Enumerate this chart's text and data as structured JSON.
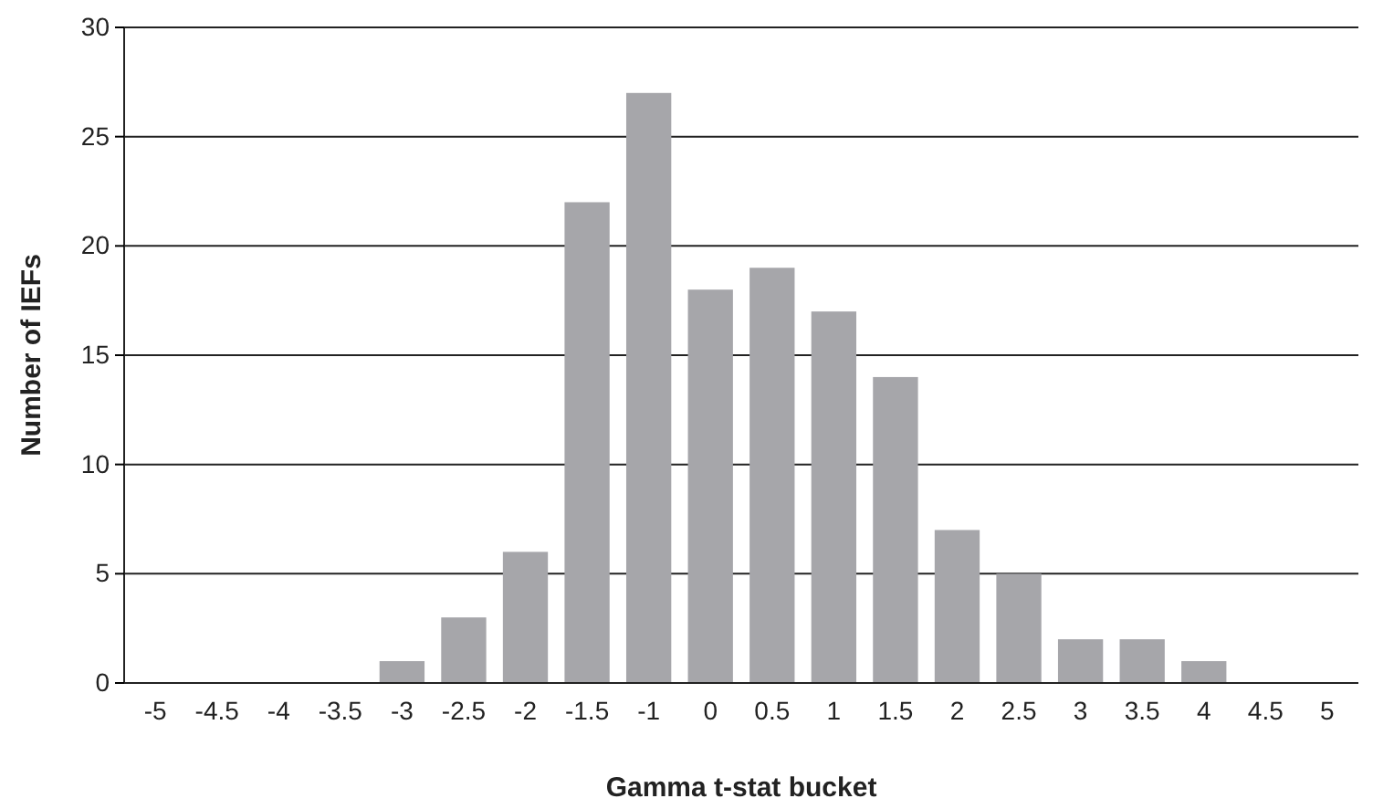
{
  "chart_data": {
    "type": "bar",
    "xlabel": "Gamma t-stat bucket",
    "ylabel": "Number of IEFs",
    "categories": [
      "-5",
      "-4.5",
      "-4",
      "-3.5",
      "-3",
      "-2.5",
      "-2",
      "-1.5",
      "-1",
      "0",
      "0.5",
      "1",
      "1.5",
      "2",
      "2.5",
      "3",
      "3.5",
      "4",
      "4.5",
      "5"
    ],
    "values": [
      0,
      0,
      0,
      0,
      1,
      3,
      6,
      22,
      27,
      18,
      19,
      17,
      14,
      7,
      5,
      2,
      2,
      1,
      0,
      0
    ],
    "color": "#a6a6aa",
    "ylim": [
      0,
      30
    ],
    "yticks": [
      0,
      5,
      10,
      15,
      20,
      25,
      30
    ],
    "grid": "y"
  }
}
